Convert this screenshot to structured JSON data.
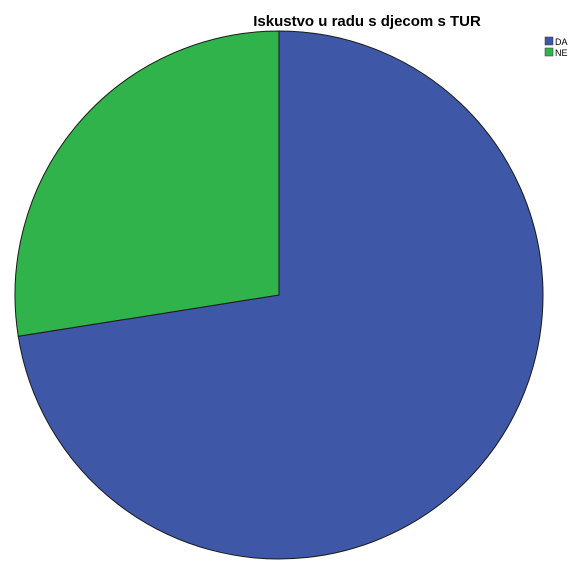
{
  "chart_data": {
    "type": "pie",
    "title": "Iskustvo u radu s djecom s TUR",
    "legend_position": "top-right",
    "slices": [
      {
        "label": "DA",
        "value": 72.5,
        "color": "#3e58a7"
      },
      {
        "label": "NE",
        "value": 27.5,
        "color": "#2fb34a"
      }
    ],
    "start_angle_deg": 0,
    "direction": "clockwise"
  }
}
